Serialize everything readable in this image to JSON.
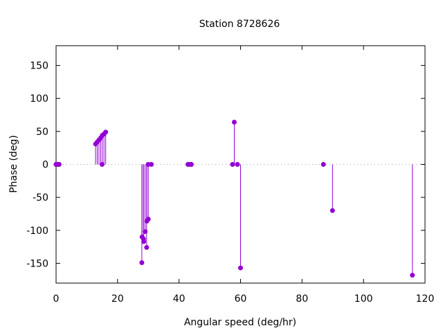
{
  "chart_data": {
    "type": "impulse",
    "title": "Station 8728626",
    "xlabel": "Angular speed (deg/hr)",
    "ylabel": "Phase (deg)",
    "xlim": [
      0,
      120
    ],
    "ylim": [
      -180,
      180
    ],
    "xticks": [
      0,
      20,
      40,
      60,
      80,
      100,
      120
    ],
    "yticks": [
      -150,
      -100,
      -50,
      0,
      50,
      100,
      150
    ],
    "color": "#9400d3",
    "points": [
      {
        "x": 0.0,
        "y": 0
      },
      {
        "x": 0.04,
        "y": 0
      },
      {
        "x": 0.08,
        "y": 0
      },
      {
        "x": 0.5,
        "y": 0
      },
      {
        "x": 1.0,
        "y": 0
      },
      {
        "x": 12.85,
        "y": 31
      },
      {
        "x": 13.4,
        "y": 34
      },
      {
        "x": 13.94,
        "y": 37
      },
      {
        "x": 14.5,
        "y": 40
      },
      {
        "x": 14.96,
        "y": 0
      },
      {
        "x": 15.04,
        "y": 44
      },
      {
        "x": 15.59,
        "y": 46
      },
      {
        "x": 16.14,
        "y": 49
      },
      {
        "x": 27.9,
        "y": -149
      },
      {
        "x": 27.97,
        "y": -110
      },
      {
        "x": 28.44,
        "y": -113
      },
      {
        "x": 28.51,
        "y": -117
      },
      {
        "x": 28.98,
        "y": -102
      },
      {
        "x": 29.46,
        "y": -126
      },
      {
        "x": 29.53,
        "y": -86
      },
      {
        "x": 29.96,
        "y": 0
      },
      {
        "x": 30.0,
        "y": -83
      },
      {
        "x": 31.0,
        "y": 0
      },
      {
        "x": 42.9,
        "y": 0
      },
      {
        "x": 43.5,
        "y": 0
      },
      {
        "x": 44.0,
        "y": 0
      },
      {
        "x": 57.4,
        "y": 0
      },
      {
        "x": 57.97,
        "y": 64
      },
      {
        "x": 58.98,
        "y": 0
      },
      {
        "x": 60.0,
        "y": -157
      },
      {
        "x": 86.95,
        "y": 0
      },
      {
        "x": 89.9,
        "y": -70
      },
      {
        "x": 115.9,
        "y": -168
      }
    ]
  }
}
